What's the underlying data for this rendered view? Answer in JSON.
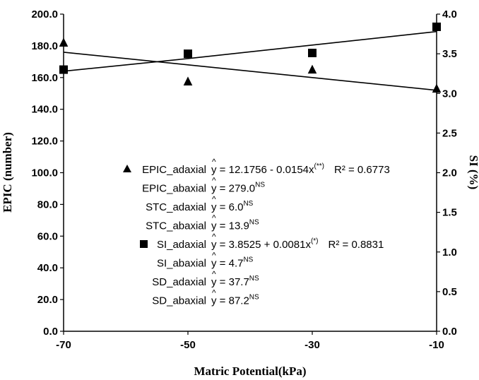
{
  "chart_data": {
    "type": "scatter",
    "xlabel": "Matric Potential(kPa)",
    "ylabel_left": "EPIC (number)",
    "ylabel_right": "SI (%)",
    "x_ticks": [
      "-70",
      "-50",
      "-30",
      "-10"
    ],
    "x": [
      -70,
      -50,
      -30,
      -10
    ],
    "xlim": [
      -70,
      -10
    ],
    "ylim_left": [
      0,
      200
    ],
    "ylim_right": [
      0,
      4
    ],
    "y_ticks_left": [
      "0.0",
      "20.0",
      "40.0",
      "60.0",
      "80.0",
      "100.0",
      "120.0",
      "140.0",
      "160.0",
      "180.0",
      "200.0"
    ],
    "y_ticks_right": [
      "0.0",
      "0.5",
      "1.0",
      "1.5",
      "2.0",
      "2.5",
      "3.0",
      "3.5",
      "4.0"
    ],
    "grid": false,
    "series": [
      {
        "name": "EPIC_adaxial",
        "axis": "left",
        "marker": "triangle",
        "values": [
          182.0,
          157.5,
          165.0,
          153.0
        ],
        "trend": [
          176.0,
          168.0,
          160.0,
          152.0
        ]
      },
      {
        "name": "SI_adaxial",
        "axis": "right",
        "marker": "square",
        "values": [
          3.3,
          3.5,
          3.51,
          3.84
        ],
        "trend": [
          3.28,
          3.44,
          3.61,
          3.78
        ]
      }
    ],
    "annotations": [
      {
        "marker": "triangle",
        "name": "EPIC_adaxial",
        "eq": "= 12.1756 - 0.0154x",
        "sup": "(**)",
        "r2": "R² = 0.6773"
      },
      {
        "marker": "",
        "name": "EPIC_abaxial",
        "eq": "= 279.0",
        "sup": "NS",
        "r2": ""
      },
      {
        "marker": "",
        "name": "STC_adaxial",
        "eq": "= 6.0",
        "sup": "NS",
        "r2": ""
      },
      {
        "marker": "",
        "name": "STC_abaxial",
        "eq": "= 13.9",
        "sup": "NS",
        "r2": ""
      },
      {
        "marker": "square",
        "name": "SI_adaxial",
        "eq": "= 3.8525 + 0.0081x",
        "sup": "(*)",
        "r2": "R² = 0.8831"
      },
      {
        "marker": "",
        "name": "SI_abaxial",
        "eq": "= 4.7",
        "sup": "NS",
        "r2": ""
      },
      {
        "marker": "",
        "name": "SD_adaxial",
        "eq": "= 37.7",
        "sup": "NS",
        "r2": ""
      },
      {
        "marker": "",
        "name": "SD_abaxial",
        "eq": "= 87.2",
        "sup": "NS",
        "r2": ""
      }
    ],
    "yhat_symbol": "ŷ",
    "colors": {
      "marker": "#000000",
      "line": "#000000",
      "axis": "#000000"
    }
  }
}
